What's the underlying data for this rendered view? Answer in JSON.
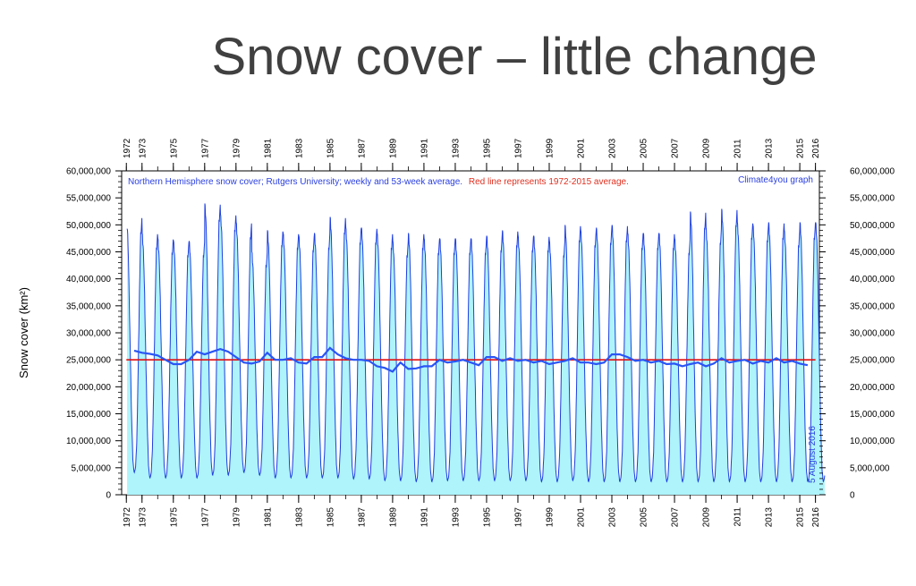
{
  "page": {
    "title": "Snow cover – little change"
  },
  "chart_data": {
    "type": "line",
    "title": "Northern Hemisphere snow cover; Rutgers University; weekly and 53-week average.",
    "subtitle": "Red line represents 1972-2015 average.",
    "credit": "Climate4you graph",
    "date_label": "5 August 2016",
    "ylabel": "Snow cover (km²)",
    "xlim": [
      1972,
      2016.5
    ],
    "ylim": [
      0,
      60000000
    ],
    "y_ticks": [
      "0",
      "5,000,000",
      "10,000,000",
      "15,000,000",
      "20,000,000",
      "25,000,000",
      "30,000,000",
      "35,000,000",
      "40,000,000",
      "45,000,000",
      "50,000,000",
      "55,000,000",
      "60,000,000"
    ],
    "x_ticks": [
      "1972",
      "1973",
      "1975",
      "1977",
      "1979",
      "1981",
      "1983",
      "1985",
      "1987",
      "1989",
      "1991",
      "1993",
      "1995",
      "1997",
      "1999",
      "2001",
      "2003",
      "2005",
      "2007",
      "2009",
      "2011",
      "2013",
      "2015",
      "2016"
    ],
    "grid": false,
    "colors": {
      "weekly": "#1f3fe0",
      "fill": "#aef4fa",
      "average": "#2a55f5",
      "reference": "#e01010",
      "title_text": "#2a3fe0",
      "subtitle_text": "#e03020"
    },
    "series": [
      {
        "name": "weekly",
        "annual_peaks": [
          [
            1972,
            51.5
          ],
          [
            1973,
            48.5
          ],
          [
            1974,
            47.5
          ],
          [
            1975,
            47
          ],
          [
            1976,
            47
          ],
          [
            1977,
            54
          ],
          [
            1978,
            52
          ],
          [
            1979,
            50.5
          ],
          [
            1980,
            45
          ],
          [
            1981,
            49
          ],
          [
            1982,
            48.5
          ],
          [
            1983,
            48
          ],
          [
            1984,
            48.5
          ],
          [
            1985,
            51.5
          ],
          [
            1986,
            49.5
          ],
          [
            1987,
            49.5
          ],
          [
            1988,
            48.5
          ],
          [
            1989,
            47
          ],
          [
            1990,
            48.5
          ],
          [
            1991,
            47.5
          ],
          [
            1992,
            47.5
          ],
          [
            1993,
            47.5
          ],
          [
            1994,
            47.5
          ],
          [
            1995,
            48
          ],
          [
            1996,
            49
          ],
          [
            1997,
            48
          ],
          [
            1998,
            48
          ],
          [
            1999,
            47
          ],
          [
            2000,
            50
          ],
          [
            2001,
            49
          ],
          [
            2002,
            49.5
          ],
          [
            2003,
            50
          ],
          [
            2004,
            48.5
          ],
          [
            2005,
            48.5
          ],
          [
            2006,
            48.5
          ],
          [
            2007,
            47.5
          ],
          [
            2008,
            52.5
          ],
          [
            2009,
            49.5
          ],
          [
            2010,
            53
          ],
          [
            2011,
            50.5
          ],
          [
            2012,
            50
          ],
          [
            2013,
            50.5
          ],
          [
            2014,
            49
          ],
          [
            2015,
            50.5
          ]
        ],
        "annual_minima": [
          [
            1972,
            4
          ],
          [
            1973,
            3
          ],
          [
            1974,
            3
          ],
          [
            1975,
            3
          ],
          [
            1976,
            3
          ],
          [
            1977,
            3.5
          ],
          [
            1978,
            3.5
          ],
          [
            1979,
            4
          ],
          [
            1980,
            3.5
          ],
          [
            1981,
            3
          ],
          [
            1982,
            3
          ],
          [
            1983,
            3
          ],
          [
            1984,
            3
          ],
          [
            1985,
            3
          ],
          [
            1986,
            2.8
          ],
          [
            1987,
            2.8
          ],
          [
            1988,
            2.5
          ],
          [
            1989,
            2.5
          ],
          [
            1990,
            2.3
          ],
          [
            1991,
            2.3
          ],
          [
            1992,
            2.5
          ],
          [
            1993,
            2.5
          ],
          [
            1994,
            2.5
          ],
          [
            1995,
            2.5
          ],
          [
            1996,
            2.5
          ],
          [
            1997,
            2.5
          ],
          [
            1998,
            2.3
          ],
          [
            1999,
            2.3
          ],
          [
            2000,
            2.5
          ],
          [
            2001,
            2.3
          ],
          [
            2002,
            2.3
          ],
          [
            2003,
            2.3
          ],
          [
            2004,
            2.3
          ],
          [
            2005,
            2.3
          ],
          [
            2006,
            2.3
          ],
          [
            2007,
            2.3
          ],
          [
            2008,
            2.3
          ],
          [
            2009,
            2.3
          ],
          [
            2010,
            2.3
          ],
          [
            2011,
            2.3
          ],
          [
            2012,
            2.3
          ],
          [
            2013,
            2.3
          ],
          [
            2014,
            2.3
          ],
          [
            2015,
            2.3
          ],
          [
            2016,
            2.3
          ]
        ],
        "unit": "million km²"
      },
      {
        "name": "53-week average",
        "x": [
          1972.5,
          1973.0,
          1973.5,
          1974.0,
          1974.5,
          1975.0,
          1975.5,
          1976.0,
          1976.5,
          1977.0,
          1977.5,
          1978.0,
          1978.5,
          1979.0,
          1979.5,
          1980.0,
          1980.5,
          1981.0,
          1981.5,
          1982.0,
          1982.5,
          1983.0,
          1983.5,
          1984.0,
          1984.5,
          1985.0,
          1985.5,
          1986.0,
          1986.5,
          1987.0,
          1987.5,
          1988.0,
          1988.5,
          1989.0,
          1989.5,
          1990.0,
          1990.5,
          1991.0,
          1991.5,
          1992.0,
          1992.5,
          1993.0,
          1993.5,
          1994.0,
          1994.5,
          1995.0,
          1995.5,
          1996.0,
          1996.5,
          1997.0,
          1997.5,
          1998.0,
          1998.5,
          1999.0,
          1999.5,
          2000.0,
          2000.5,
          2001.0,
          2001.5,
          2002.0,
          2002.5,
          2003.0,
          2003.5,
          2004.0,
          2004.5,
          2005.0,
          2005.5,
          2006.0,
          2006.5,
          2007.0,
          2007.5,
          2008.0,
          2008.5,
          2009.0,
          2009.5,
          2010.0,
          2010.5,
          2011.0,
          2011.5,
          2012.0,
          2012.5,
          2013.0,
          2013.5,
          2014.0,
          2014.5,
          2015.0,
          2015.5
        ],
        "y": [
          26.7,
          26.3,
          26.1,
          25.8,
          25.0,
          24.2,
          24.2,
          25.0,
          26.5,
          26.0,
          26.5,
          27.0,
          26.5,
          25.5,
          24.5,
          24.3,
          24.7,
          26.3,
          25.0,
          25.0,
          25.3,
          24.5,
          24.3,
          25.5,
          25.5,
          27.2,
          26.0,
          25.3,
          25.0,
          25.0,
          24.8,
          23.8,
          23.5,
          22.8,
          24.5,
          23.3,
          23.4,
          23.8,
          23.8,
          25.0,
          24.5,
          24.7,
          25.0,
          24.5,
          24.0,
          25.5,
          25.5,
          24.8,
          25.3,
          24.8,
          25.0,
          24.5,
          24.8,
          24.2,
          24.5,
          24.8,
          25.3,
          24.5,
          24.5,
          24.2,
          24.5,
          26.0,
          26.0,
          25.5,
          24.8,
          25.0,
          24.5,
          24.8,
          24.2,
          24.3,
          23.8,
          24.2,
          24.5,
          23.8,
          24.3,
          25.3,
          24.5,
          24.8,
          25.0,
          24.3,
          24.8,
          24.5,
          25.3,
          24.5,
          24.8,
          24.3,
          24.0
        ],
        "unit": "million km²"
      },
      {
        "name": "1972-2015 average",
        "x": [
          1972,
          2016
        ],
        "y": [
          25.0,
          25.0
        ],
        "unit": "million km²"
      }
    ]
  }
}
